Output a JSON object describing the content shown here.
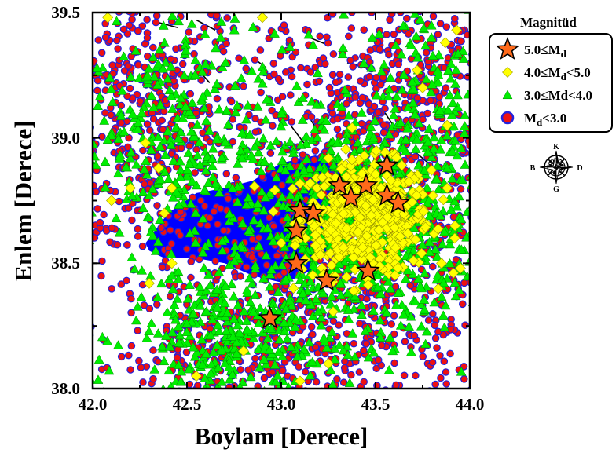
{
  "chart_data": {
    "type": "scatter",
    "xlabel": "Boylam [Derece]",
    "ylabel": "Enlem [Derece]",
    "xlim": [
      42.0,
      44.0
    ],
    "ylim": [
      38.0,
      39.5
    ],
    "x_ticks": [
      "42.0",
      "42.5",
      "43.0",
      "43.5",
      "44.0"
    ],
    "y_ticks": [
      "38.0",
      "38.5",
      "39.0",
      "39.5"
    ],
    "x_tick_values": [
      42.0,
      42.5,
      43.0,
      43.5,
      44.0
    ],
    "y_tick_values": [
      38.0,
      38.5,
      39.0,
      39.5
    ],
    "legend_title": "Magnitüd",
    "legend_position": "right",
    "grid": false,
    "lake_color": "#0000ff",
    "series": [
      {
        "name": "5.0≤Md",
        "label_base": "5.0≤M",
        "label_sub": "d",
        "label_tail": "",
        "marker": "star",
        "color": "#ff6a1a",
        "edge": "#000000",
        "points": [
          [
            43.56,
            38.89
          ],
          [
            43.31,
            38.81
          ],
          [
            43.45,
            38.81
          ],
          [
            43.37,
            38.76
          ],
          [
            43.56,
            38.77
          ],
          [
            43.62,
            38.74
          ],
          [
            43.1,
            38.71
          ],
          [
            43.17,
            38.7
          ],
          [
            43.08,
            38.63
          ],
          [
            43.08,
            38.5
          ],
          [
            43.24,
            38.43
          ],
          [
            43.46,
            38.47
          ],
          [
            42.94,
            38.28
          ]
        ]
      },
      {
        "name": "4.0≤Md<5.0",
        "label_base": "4.0≤M",
        "label_sub": "d",
        "label_tail": "<5.0",
        "marker": "diamond",
        "color": "#ffff00",
        "edge": "#999900",
        "points": [
          [
            42.08,
            39.48
          ],
          [
            42.9,
            39.48
          ],
          [
            43.93,
            39.43
          ],
          [
            43.87,
            39.38
          ],
          [
            43.72,
            39.27
          ],
          [
            43.75,
            39.2
          ],
          [
            43.88,
            39.05
          ],
          [
            42.28,
            38.98
          ],
          [
            42.35,
            38.88
          ],
          [
            42.42,
            38.8
          ],
          [
            42.2,
            38.8
          ],
          [
            42.38,
            38.7
          ],
          [
            42.1,
            38.75
          ],
          [
            43.88,
            38.8
          ],
          [
            43.92,
            38.6
          ],
          [
            43.95,
            38.48
          ],
          [
            43.85,
            38.5
          ],
          [
            42.3,
            38.42
          ],
          [
            42.42,
            38.5
          ],
          [
            43.1,
            38.03
          ],
          [
            42.55,
            38.05
          ],
          [
            43.25,
            38.1
          ],
          [
            42.8,
            38.15
          ]
        ],
        "cluster": {
          "cx": 43.45,
          "cy": 38.68,
          "sx": 0.17,
          "sy": 0.11,
          "count": 520
        }
      },
      {
        "name": "3.0≤Md<4.0",
        "label_base": "3.0≤Md<4.0",
        "label_sub": "",
        "label_tail": "",
        "marker": "triangle",
        "color": "#00ee00",
        "edge": "#008800",
        "clusters": [
          {
            "cx": 43.42,
            "cy": 38.65,
            "sx": 0.3,
            "sy": 0.22,
            "count": 700
          },
          {
            "cx": 42.72,
            "cy": 38.2,
            "sx": 0.26,
            "sy": 0.14,
            "count": 260
          },
          {
            "cx": 42.35,
            "cy": 39.0,
            "sx": 0.25,
            "sy": 0.22,
            "count": 230
          },
          {
            "cx": 43.8,
            "cy": 39.15,
            "sx": 0.18,
            "sy": 0.28,
            "count": 140
          },
          {
            "cx": 43.0,
            "cy": 38.75,
            "sx": 0.55,
            "sy": 0.4,
            "count": 260
          }
        ]
      },
      {
        "name": "Md<3.0",
        "label_base": "M",
        "label_sub": "d",
        "label_tail": "<3.0",
        "marker": "circle",
        "color": "#ee1111",
        "edge": "#2222dd",
        "clusters": [
          {
            "cx": 43.0,
            "cy": 38.75,
            "sx": 1.05,
            "sy": 0.85,
            "count": 1500
          },
          {
            "cx": 43.45,
            "cy": 38.6,
            "sx": 0.35,
            "sy": 0.28,
            "count": 500
          },
          {
            "cx": 42.3,
            "cy": 39.1,
            "sx": 0.28,
            "sy": 0.28,
            "count": 350
          },
          {
            "cx": 43.7,
            "cy": 39.25,
            "sx": 0.25,
            "sy": 0.2,
            "count": 230
          },
          {
            "cx": 42.75,
            "cy": 38.15,
            "sx": 0.3,
            "sy": 0.15,
            "count": 250
          }
        ]
      }
    ]
  },
  "compass": {
    "n": "K",
    "s": "G",
    "e": "D",
    "w": "B"
  }
}
